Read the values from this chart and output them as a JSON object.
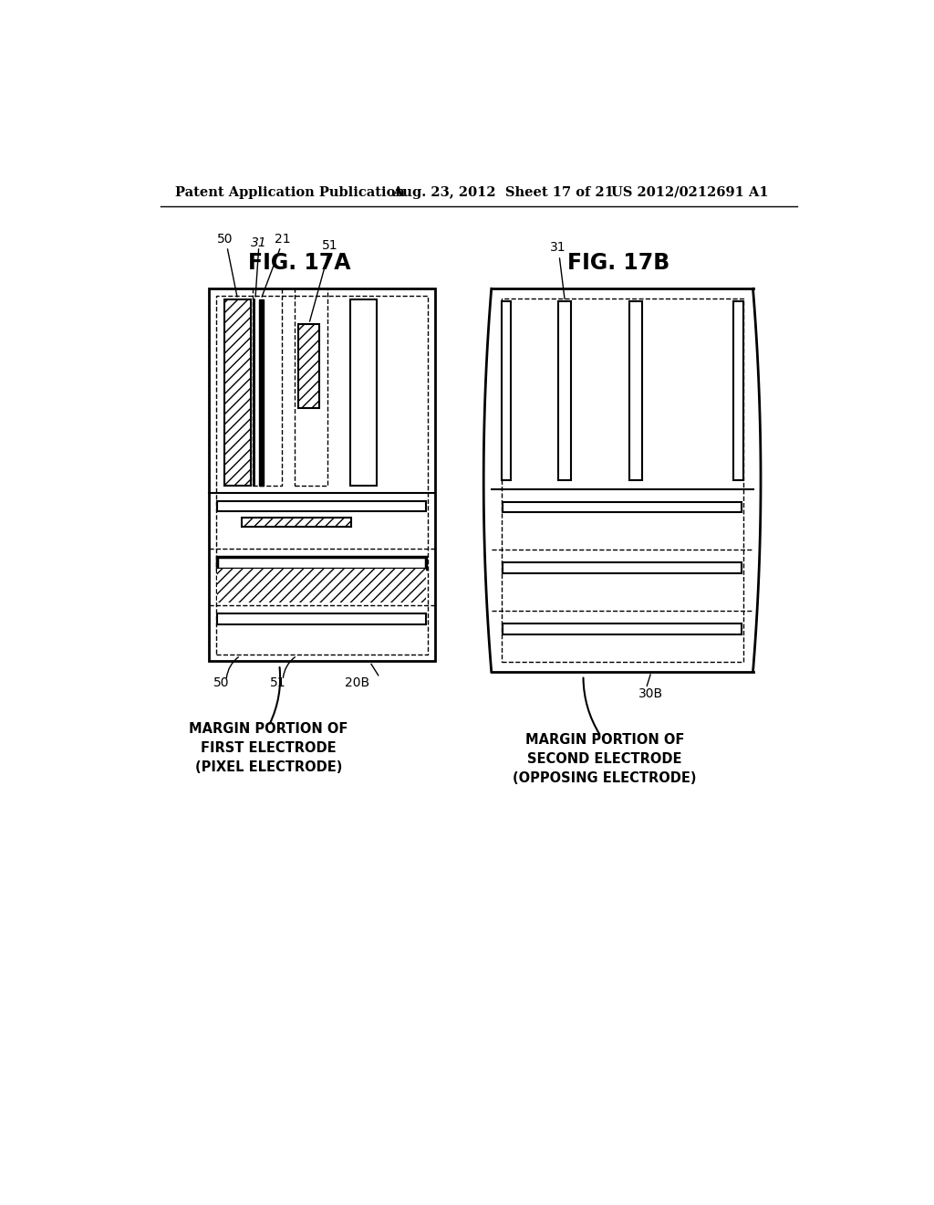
{
  "bg_color": "#ffffff",
  "header_left": "Patent Application Publication",
  "header_mid": "Aug. 23, 2012  Sheet 17 of 21",
  "header_right": "US 2012/0212691 A1",
  "fig17a_title": "FIG. 17A",
  "fig17b_title": "FIG. 17B",
  "caption_left": "MARGIN PORTION OF\nFIRST ELECTRODE\n(PIXEL ELECTRODE)",
  "caption_right": "MARGIN PORTION OF\nSECOND ELECTRODE\n(OPPOSING ELECTRODE)"
}
